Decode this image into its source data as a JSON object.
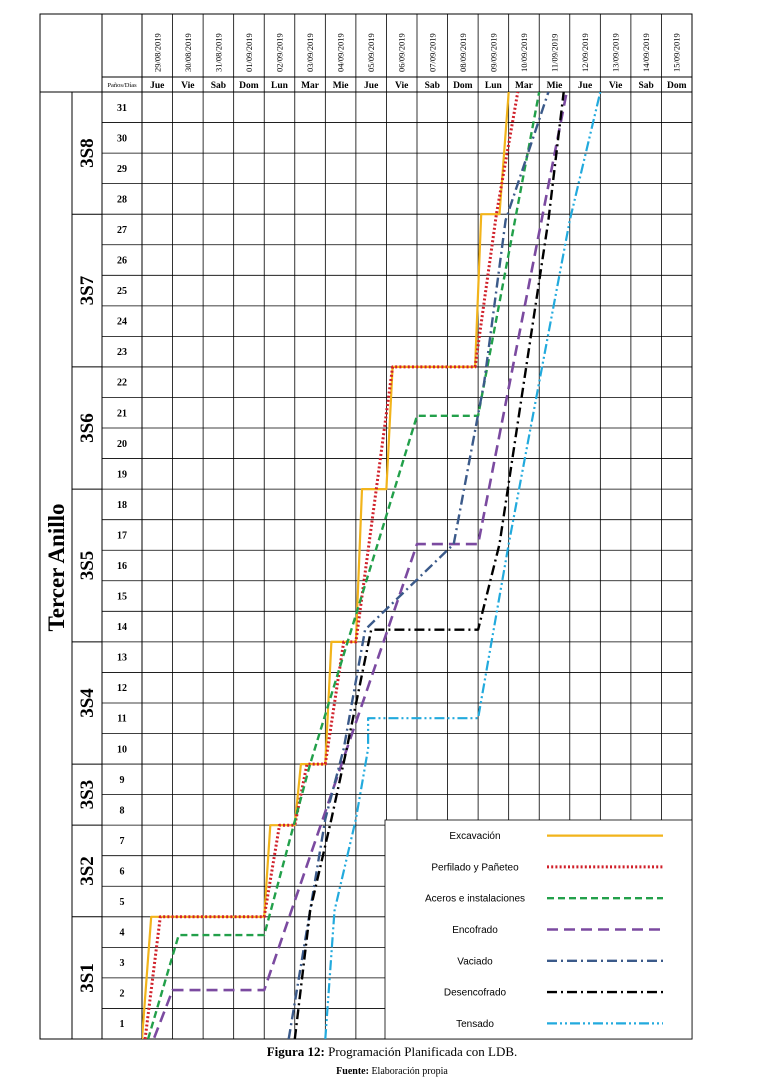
{
  "chart_data": {
    "type": "line",
    "title": "",
    "zone_label": "Tercer Anillo",
    "corner_label": "Paños/Días",
    "dates": [
      "29/08/2019",
      "30/08/2019",
      "31/08/2019",
      "01/09/2019",
      "02/09/2019",
      "03/09/2019",
      "04/09/2019",
      "05/09/2019",
      "06/09/2019",
      "07/09/2019",
      "08/09/2019",
      "09/09/2019",
      "10/09/2019",
      "11/09/2019",
      "12/09/2019",
      "13/09/2019",
      "14/09/2019",
      "15/09/2019"
    ],
    "weekdays": [
      "Jue",
      "Vie",
      "Sab",
      "Dom",
      "Lun",
      "Mar",
      "Mie",
      "Jue",
      "Vie",
      "Sab",
      "Dom",
      "Lun",
      "Mar",
      "Mie",
      "Jue",
      "Vie",
      "Sab",
      "Dom"
    ],
    "panos": [
      "1",
      "2",
      "3",
      "4",
      "5",
      "6",
      "7",
      "8",
      "9",
      "10",
      "11",
      "12",
      "13",
      "14",
      "15",
      "16",
      "17",
      "18",
      "19",
      "20",
      "21",
      "22",
      "23",
      "24",
      "25",
      "26",
      "27",
      "28",
      "29",
      "30",
      "31"
    ],
    "sectors": [
      {
        "name": "3S1",
        "from": 1,
        "to": 4
      },
      {
        "name": "3S2",
        "from": 5,
        "to": 7
      },
      {
        "name": "3S3",
        "from": 8,
        "to": 9
      },
      {
        "name": "3S4",
        "from": 10,
        "to": 13
      },
      {
        "name": "3S5",
        "from": 14,
        "to": 18
      },
      {
        "name": "3S6",
        "from": 19,
        "to": 22
      },
      {
        "name": "3S7",
        "from": 23,
        "to": 27
      },
      {
        "name": "3S8",
        "from": 28,
        "to": 31
      }
    ],
    "x_unit": "day index from 29/08/2019 (0 = left edge of Jue 29/08)",
    "y_unit": "paño (0 = bottom of paño 1, 31 = top of paño 31)",
    "series": [
      {
        "name": "Excavación",
        "color": "#F2B41B",
        "dash": "solid",
        "points": [
          [
            0,
            0
          ],
          [
            0.3,
            4
          ],
          [
            4,
            4
          ],
          [
            4.2,
            7
          ],
          [
            5,
            7
          ],
          [
            5.2,
            9
          ],
          [
            6,
            9
          ],
          [
            6.2,
            13
          ],
          [
            7,
            13
          ],
          [
            7.2,
            18
          ],
          [
            8,
            18
          ],
          [
            8.2,
            22
          ],
          [
            10.9,
            22
          ],
          [
            11.1,
            27
          ],
          [
            11.7,
            27
          ],
          [
            12,
            31
          ]
        ]
      },
      {
        "name": "Perfilado y Pañeteo",
        "color": "#D0202A",
        "dash": "dot",
        "points": [
          [
            0.1,
            0
          ],
          [
            0.6,
            4
          ],
          [
            4,
            4
          ],
          [
            4.5,
            7
          ],
          [
            5,
            7
          ],
          [
            5.4,
            9
          ],
          [
            6,
            9
          ],
          [
            6.6,
            13
          ],
          [
            7,
            13
          ],
          [
            8.2,
            22
          ],
          [
            10.9,
            22
          ],
          [
            11.6,
            27
          ],
          [
            12.3,
            31
          ]
        ]
      },
      {
        "name": "Aceros e instalaciones",
        "color": "#22A04A",
        "dash": "dash",
        "points": [
          [
            0.2,
            0
          ],
          [
            1.2,
            3.4
          ],
          [
            4,
            3.4
          ],
          [
            5.5,
            9
          ],
          [
            9,
            20.4
          ],
          [
            11,
            20.4
          ],
          [
            13,
            31
          ]
        ]
      },
      {
        "name": "Encofrado",
        "color": "#7B4AA0",
        "dash": "longdash",
        "points": [
          [
            0,
            -1
          ],
          [
            1,
            1.6
          ],
          [
            4,
            1.6
          ],
          [
            9,
            16.2
          ],
          [
            11,
            16.2
          ],
          [
            13.9,
            31
          ]
        ]
      },
      {
        "name": "Vaciado",
        "color": "#3B5A8A",
        "dash": "dashdot",
        "points": [
          [
            4.8,
            0
          ],
          [
            5.5,
            4.2
          ],
          [
            6,
            7.2
          ],
          [
            6.6,
            9.5
          ],
          [
            7.3,
            13.4
          ],
          [
            10.2,
            16.2
          ],
          [
            11.2,
            21.5
          ],
          [
            11.9,
            26.8
          ],
          [
            13.3,
            31
          ]
        ]
      },
      {
        "name": "Desencofrado",
        "color": "#000000",
        "dash": "dashdot",
        "points": [
          [
            5,
            0
          ],
          [
            5.5,
            4.2
          ],
          [
            6.2,
            7.2
          ],
          [
            6.7,
            9.5
          ],
          [
            7.5,
            13.4
          ],
          [
            11,
            13.4
          ],
          [
            11.7,
            16.2
          ],
          [
            12.5,
            21.5
          ],
          [
            13.3,
            26.8
          ],
          [
            13.8,
            31
          ]
        ]
      },
      {
        "name": "Tensado",
        "color": "#22AADD",
        "dash": "dashdotdot",
        "points": [
          [
            6,
            0
          ],
          [
            6.3,
            4.2
          ],
          [
            7,
            7.2
          ],
          [
            7.4,
            9.5
          ],
          [
            7.4,
            10.5
          ],
          [
            11,
            10.5
          ],
          [
            12,
            16.2
          ],
          [
            13,
            21.5
          ],
          [
            14,
            26.8
          ],
          [
            15,
            31
          ]
        ]
      }
    ]
  },
  "caption": {
    "figure_label": "Figura 12:",
    "figure_text": "Programación Planificada con LDB.",
    "source_label": "Fuente:",
    "source_text": "Elaboración propia"
  }
}
